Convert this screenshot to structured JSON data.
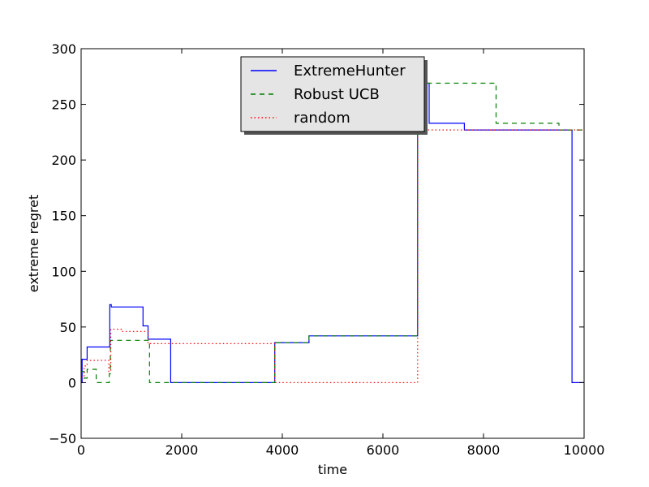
{
  "chart_data": {
    "type": "line",
    "title": "",
    "xlabel": "time",
    "ylabel": "extreme regret",
    "xlim": [
      0,
      10000
    ],
    "ylim": [
      -50,
      300
    ],
    "xticks": [
      0,
      2000,
      4000,
      6000,
      8000,
      10000
    ],
    "yticks": [
      -50,
      0,
      50,
      100,
      150,
      200,
      250,
      300
    ],
    "grid": false,
    "legend_position": "top-center",
    "series": [
      {
        "name": "ExtremeHunter",
        "color": "#0000ff",
        "linestyle": "solid",
        "step": true,
        "points": [
          [
            0,
            0
          ],
          [
            20,
            21
          ],
          [
            120,
            32
          ],
          [
            570,
            70
          ],
          [
            600,
            68
          ],
          [
            1230,
            51
          ],
          [
            1330,
            39
          ],
          [
            1780,
            0
          ],
          [
            3850,
            36
          ],
          [
            4530,
            42
          ],
          [
            6680,
            42
          ],
          [
            6690,
            269
          ],
          [
            6920,
            233
          ],
          [
            7620,
            227
          ],
          [
            9760,
            0
          ],
          [
            10000,
            0
          ]
        ]
      },
      {
        "name": "Robust UCB",
        "color": "#008000",
        "linestyle": "dashed",
        "step": true,
        "points": [
          [
            0,
            10
          ],
          [
            60,
            4
          ],
          [
            120,
            12
          ],
          [
            300,
            0
          ],
          [
            560,
            8
          ],
          [
            580,
            38
          ],
          [
            1360,
            0
          ],
          [
            1780,
            0
          ],
          [
            3850,
            36
          ],
          [
            4530,
            42
          ],
          [
            6680,
            42
          ],
          [
            6690,
            269
          ],
          [
            8250,
            233
          ],
          [
            9500,
            227
          ],
          [
            10000,
            227
          ]
        ]
      },
      {
        "name": "random",
        "color": "#ff0000",
        "linestyle": "dotted",
        "step": true,
        "points": [
          [
            0,
            5
          ],
          [
            60,
            15
          ],
          [
            120,
            20
          ],
          [
            550,
            10
          ],
          [
            590,
            48
          ],
          [
            800,
            46
          ],
          [
            1330,
            35
          ],
          [
            3850,
            0
          ],
          [
            6680,
            0
          ],
          [
            6690,
            227
          ],
          [
            10000,
            227
          ]
        ]
      }
    ]
  }
}
